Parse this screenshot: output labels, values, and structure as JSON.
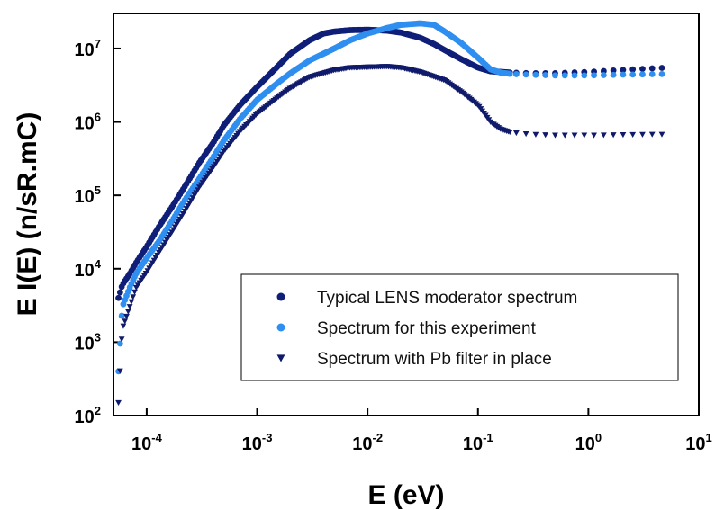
{
  "chart_data": {
    "type": "scatter",
    "title": "",
    "xlabel": "E (eV)",
    "ylabel": "E I(E) (n/sR.mC)",
    "x_scale": "log",
    "y_scale": "log",
    "xlim": [
      5e-05,
      10
    ],
    "ylim": [
      100,
      30000000
    ],
    "grid": false,
    "legend_position": "lower-right",
    "x_ticks": [
      {
        "base": "10",
        "exp": "-4",
        "value": 0.0001
      },
      {
        "base": "10",
        "exp": "-3",
        "value": 0.001
      },
      {
        "base": "10",
        "exp": "-2",
        "value": 0.01
      },
      {
        "base": "10",
        "exp": "-1",
        "value": 0.1
      },
      {
        "base": "10",
        "exp": "0",
        "value": 1
      },
      {
        "base": "10",
        "exp": "1",
        "value": 10
      }
    ],
    "y_ticks": [
      {
        "base": "10",
        "exp": "2",
        "value": 100
      },
      {
        "base": "10",
        "exp": "3",
        "value": 1000
      },
      {
        "base": "10",
        "exp": "4",
        "value": 10000
      },
      {
        "base": "10",
        "exp": "5",
        "value": 100000
      },
      {
        "base": "10",
        "exp": "6",
        "value": 1000000
      },
      {
        "base": "10",
        "exp": "7",
        "value": 10000000
      }
    ],
    "series": [
      {
        "name": "Typical LENS moderator spectrum",
        "marker": "circle",
        "color": "#0f1f78",
        "x": [
          5.55e-05,
          6e-05,
          7e-05,
          8e-05,
          0.0001,
          0.00013,
          0.00017,
          0.00022,
          0.0003,
          0.0004,
          0.0005,
          0.0007,
          0.001,
          0.0015,
          0.002,
          0.003,
          0.004,
          0.005,
          0.007,
          0.01,
          0.015,
          0.02,
          0.03,
          0.04,
          0.05,
          0.07,
          0.1,
          0.13,
          0.16,
          0.2,
          0.3,
          0.5,
          1,
          2,
          5.3
        ],
        "y": [
          4000,
          6000,
          8500,
          12000,
          20000,
          38000,
          70000,
          130000,
          280000,
          520000,
          900000,
          1700000,
          3000000,
          5500000,
          8500000,
          13000000,
          16000000,
          17000000,
          17800000,
          18000000,
          17500000,
          16500000,
          14000000,
          11500000,
          9500000,
          7200000,
          5500000,
          4900000,
          4800000,
          4700000,
          4600000,
          4600000,
          4800000,
          5100000,
          5500000
        ]
      },
      {
        "name": "Spectrum for this experiment",
        "marker": "circle",
        "color": "#2f8ff0",
        "x": [
          5.55e-05,
          6e-05,
          7e-05,
          8e-05,
          0.0001,
          0.00013,
          0.00017,
          0.00022,
          0.0003,
          0.0004,
          0.0005,
          0.0007,
          0.001,
          0.0015,
          0.002,
          0.003,
          0.005,
          0.007,
          0.01,
          0.015,
          0.02,
          0.03,
          0.04,
          0.05,
          0.07,
          0.1,
          0.13,
          0.16,
          0.2,
          0.3,
          0.5,
          1,
          2,
          5.3
        ],
        "y": [
          400,
          3000,
          5500,
          8500,
          14000,
          24000,
          45000,
          85000,
          170000,
          330000,
          560000,
          1100000,
          2000000,
          3300000,
          4600000,
          6900000,
          10000000,
          13000000,
          16000000,
          19000000,
          21000000,
          22000000,
          21000000,
          17000000,
          12000000,
          7500000,
          5200000,
          4700000,
          4500000,
          4400000,
          4300000,
          4300000,
          4400000,
          4500000
        ]
      },
      {
        "name": "Spectrum with Pb filter in place",
        "marker": "triangle-down",
        "color": "#101a6b",
        "x": [
          5.55e-05,
          6e-05,
          7e-05,
          8e-05,
          0.0001,
          0.00013,
          0.00017,
          0.00022,
          0.0003,
          0.0004,
          0.0005,
          0.0007,
          0.001,
          0.0015,
          0.002,
          0.003,
          0.005,
          0.007,
          0.01,
          0.015,
          0.02,
          0.03,
          0.05,
          0.07,
          0.1,
          0.13,
          0.16,
          0.2,
          0.3,
          0.5,
          1,
          2,
          5.3
        ],
        "y": [
          150,
          1500,
          3000,
          5500,
          9000,
          17000,
          32000,
          60000,
          130000,
          240000,
          400000,
          750000,
          1300000,
          2100000,
          2900000,
          4100000,
          5100000,
          5500000,
          5600000,
          5700000,
          5500000,
          4800000,
          3700000,
          2600000,
          1700000,
          1000000,
          800000,
          720000,
          680000,
          660000,
          660000,
          670000,
          680000
        ]
      }
    ]
  }
}
